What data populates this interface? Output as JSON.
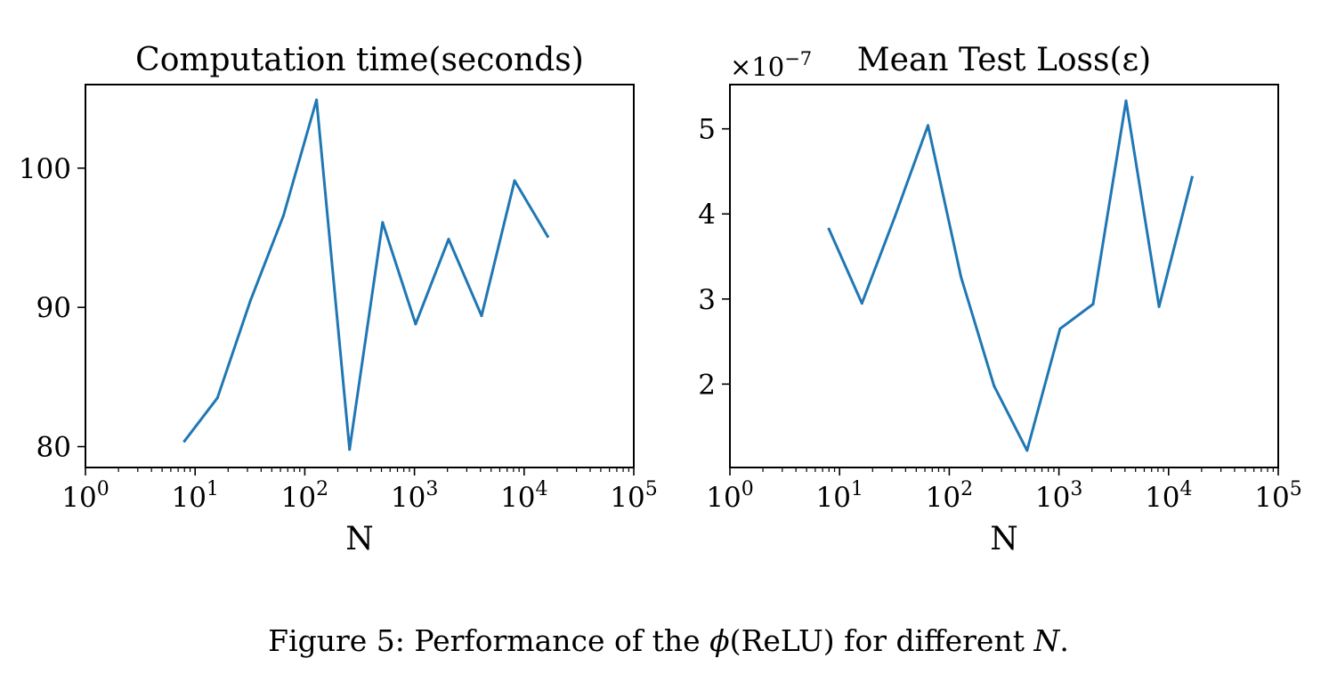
{
  "chart_data": [
    {
      "type": "line",
      "title": "Computation time(seconds)",
      "xlabel": "N",
      "ylabel": "",
      "xscale": "log",
      "xlim": [
        1,
        100000
      ],
      "ylim": [
        78.5,
        106
      ],
      "grid": false,
      "x_ticks": [
        {
          "value": 1,
          "base": "10",
          "exp": "0"
        },
        {
          "value": 10,
          "base": "10",
          "exp": "1"
        },
        {
          "value": 100,
          "base": "10",
          "exp": "2"
        },
        {
          "value": 1000,
          "base": "10",
          "exp": "3"
        },
        {
          "value": 10000,
          "base": "10",
          "exp": "4"
        },
        {
          "value": 100000,
          "base": "10",
          "exp": "5"
        }
      ],
      "y_ticks": [
        {
          "value": 80,
          "label": "80"
        },
        {
          "value": 90,
          "label": "90"
        },
        {
          "value": 100,
          "label": "100"
        }
      ],
      "series": [
        {
          "color": "#1f77b4",
          "x": [
            8,
            16,
            32,
            64,
            128,
            256,
            512,
            1024,
            2048,
            4096,
            8192,
            16384
          ],
          "y": [
            80.4,
            83.5,
            90.5,
            96.6,
            104.9,
            79.8,
            96.1,
            88.8,
            94.9,
            89.4,
            99.1,
            95.1
          ]
        }
      ]
    },
    {
      "type": "line",
      "title": "Mean Test Loss(ε)",
      "xlabel": "N",
      "ylabel": "",
      "xscale": "log",
      "xlim": [
        1,
        100000
      ],
      "ylim": [
        1.02,
        5.52
      ],
      "scale_factor": {
        "base": "×10",
        "exp": "−7"
      },
      "grid": false,
      "x_ticks": [
        {
          "value": 1,
          "base": "10",
          "exp": "0"
        },
        {
          "value": 10,
          "base": "10",
          "exp": "1"
        },
        {
          "value": 100,
          "base": "10",
          "exp": "2"
        },
        {
          "value": 1000,
          "base": "10",
          "exp": "3"
        },
        {
          "value": 10000,
          "base": "10",
          "exp": "4"
        },
        {
          "value": 100000,
          "base": "10",
          "exp": "5"
        }
      ],
      "y_ticks": [
        {
          "value": 2,
          "label": "2"
        },
        {
          "value": 3,
          "label": "3"
        },
        {
          "value": 4,
          "label": "4"
        },
        {
          "value": 5,
          "label": "5"
        }
      ],
      "series": [
        {
          "color": "#1f77b4",
          "x": [
            8,
            16,
            32,
            64,
            128,
            256,
            512,
            1024,
            2048,
            4096,
            8192,
            16384
          ],
          "y": [
            3.82,
            2.95,
            3.97,
            5.04,
            3.26,
            1.98,
            1.22,
            2.65,
            2.94,
            5.33,
            2.91,
            4.43
          ]
        }
      ]
    }
  ],
  "caption": {
    "prefix": "Figure 5: Performance of the ",
    "phi": "ϕ",
    "middle": "(ReLU) for different ",
    "var": "N",
    "suffix": "."
  }
}
